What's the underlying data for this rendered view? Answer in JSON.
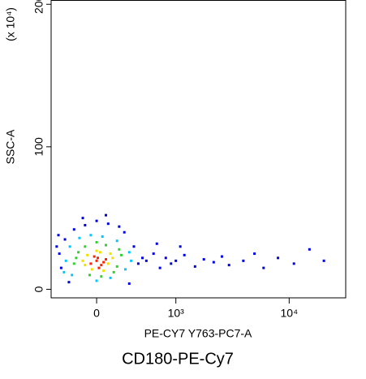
{
  "chart_data": {
    "type": "scatter",
    "title": "CD180-PE-Cy7",
    "x_label": "PE-CY7 Y763-PC7-A",
    "y_label": "SSC-A",
    "y_multiplier": "(x 10⁴)",
    "x_scale": "biexponential",
    "xlim": [
      -446,
      30900
    ],
    "ylim": [
      -6,
      203
    ],
    "xticks": [
      0,
      {
        "value": 1000,
        "label": "10³"
      },
      {
        "value": 10000,
        "label": "10⁴"
      }
    ],
    "yticks": [
      0,
      100,
      200
    ],
    "series": [
      {
        "color": "#0000e0",
        "x": [
          -350,
          -330,
          -290,
          350,
          400,
          450,
          -200,
          -100,
          0,
          100,
          200,
          -380,
          500,
          600,
          700,
          800,
          900,
          1000,
          1200,
          1500,
          1800,
          2200,
          2600,
          3000,
          4000,
          5000,
          6000,
          8000,
          11000,
          15000,
          20000,
          -250,
          300,
          650,
          1100,
          -360,
          250,
          -120,
          80
        ],
        "values": [
          25,
          15,
          35,
          30,
          18,
          22,
          42,
          45,
          48,
          46,
          44,
          30,
          20,
          25,
          15,
          22,
          18,
          20,
          24,
          16,
          21,
          19,
          23,
          17,
          20,
          25,
          15,
          22,
          18,
          28,
          20,
          5,
          4,
          32,
          30,
          38,
          40,
          50,
          52
        ]
      },
      {
        "color": "#00c8ff",
        "x": [
          -280,
          -240,
          260,
          300,
          -150,
          120,
          -50,
          50,
          -300,
          320,
          0,
          180,
          -220
        ],
        "values": [
          20,
          30,
          14,
          26,
          36,
          8,
          38,
          37,
          12,
          20,
          6,
          34,
          10
        ]
      },
      {
        "color": "#30d030",
        "x": [
          -200,
          -160,
          180,
          220,
          -100,
          150,
          -60,
          80,
          0,
          -180,
          200,
          40
        ],
        "values": [
          18,
          26,
          16,
          24,
          30,
          12,
          10,
          31,
          33,
          22,
          28,
          9
        ]
      },
      {
        "color": "#f0e000",
        "x": [
          -120,
          -80,
          100,
          140,
          -40,
          30,
          120,
          -100,
          60,
          0
        ],
        "values": [
          20,
          24,
          18,
          22,
          14,
          26,
          25,
          17,
          13,
          27
        ]
      },
      {
        "color": "#ff2000",
        "x": [
          -50,
          0,
          40,
          80,
          -20,
          20,
          60,
          10
        ],
        "values": [
          18,
          20,
          17,
          21,
          23,
          15,
          19,
          22
        ]
      }
    ]
  }
}
